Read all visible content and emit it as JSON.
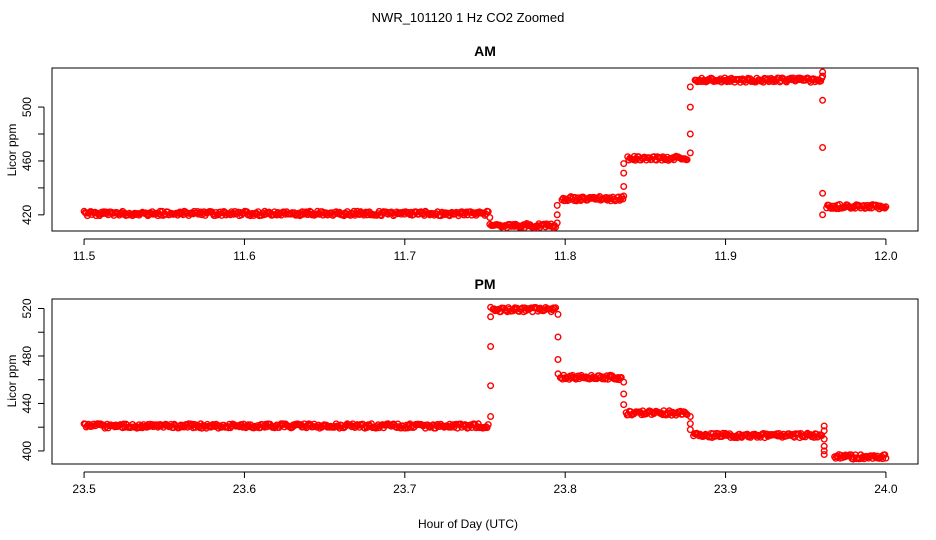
{
  "figure": {
    "title": "NWR_101120  1 Hz CO2 Zoomed",
    "xlabel": "Hour of Day (UTC)"
  },
  "colors": {
    "points": "#ff0000",
    "axes": "#000000",
    "background": "#ffffff"
  },
  "chart_data": [
    {
      "type": "scatter",
      "title": "AM",
      "ylabel": "Licor ppm",
      "xlim": [
        11.48,
        12.02
      ],
      "ylim": [
        408,
        529
      ],
      "xticks": [
        11.5,
        11.6,
        11.7,
        11.8,
        11.9,
        12.0
      ],
      "xtick_labels": [
        "11.5",
        "11.6",
        "11.7",
        "11.8",
        "11.9",
        "12.0"
      ],
      "yticks": [
        420,
        460,
        500
      ],
      "ytick_labels": [
        "420",
        "460",
        "500"
      ],
      "grid": false,
      "series": [
        {
          "marker": "open-circle",
          "segments": [
            {
              "x": [
                11.5,
                11.752
              ],
              "y": 421
            },
            {
              "x": [
                11.754,
                11.794
              ],
              "y": 412
            },
            {
              "x": [
                11.798,
                11.836
              ],
              "y": 432
            },
            {
              "x": [
                11.839,
                11.876
              ],
              "y": 462
            },
            {
              "x": [
                11.881,
                11.96
              ],
              "y": 520
            },
            {
              "x": [
                11.963,
                12.0
              ],
              "y": 426
            }
          ],
          "transitions": [
            {
              "x": 11.753,
              "y": [
                413,
                418
              ]
            },
            {
              "x": 11.795,
              "y": [
                414,
                420,
                427
              ]
            },
            {
              "x": 11.8365,
              "y": [
                434,
                441,
                451,
                458
              ]
            },
            {
              "x": 11.878,
              "y": [
                466,
                480,
                500,
                515
              ]
            },
            {
              "x": 11.9605,
              "y": [
                523,
                526,
                505,
                470,
                436,
                420
              ]
            }
          ]
        }
      ]
    },
    {
      "type": "scatter",
      "title": "PM",
      "ylabel": "Licor ppm",
      "xlim": [
        23.48,
        24.02
      ],
      "ylim": [
        389,
        528
      ],
      "xticks": [
        23.5,
        23.6,
        23.7,
        23.8,
        23.9,
        24.0
      ],
      "xtick_labels": [
        "23.5",
        "23.6",
        "23.7",
        "23.8",
        "23.9",
        "24.0"
      ],
      "yticks": [
        400,
        440,
        480,
        520
      ],
      "ytick_labels": [
        "400",
        "440",
        "480",
        "520"
      ],
      "grid": false,
      "series": [
        {
          "marker": "open-circle",
          "segments": [
            {
              "x": [
                23.5,
                23.752
              ],
              "y": 421
            },
            {
              "x": [
                23.755,
                23.794
              ],
              "y": 519
            },
            {
              "x": [
                23.797,
                23.835
              ],
              "y": 462
            },
            {
              "x": [
                23.838,
                23.876
              ],
              "y": 432
            },
            {
              "x": [
                23.88,
                23.96
              ],
              "y": 413
            },
            {
              "x": [
                23.968,
                24.0
              ],
              "y": 395
            }
          ],
          "transitions": [
            {
              "x": 23.7535,
              "y": [
                429,
                455,
                488,
                513,
                521
              ]
            },
            {
              "x": 23.7955,
              "y": [
                515,
                496,
                477,
                465
              ]
            },
            {
              "x": 23.8365,
              "y": [
                458,
                448,
                439
              ]
            },
            {
              "x": 23.878,
              "y": [
                429,
                423,
                418
              ]
            },
            {
              "x": 23.9615,
              "y": [
                421,
                417,
                410,
                404,
                400,
                397
              ]
            }
          ]
        }
      ]
    }
  ]
}
